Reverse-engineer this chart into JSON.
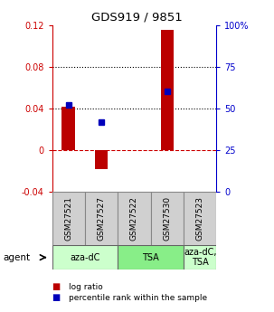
{
  "title": "GDS919 / 9851",
  "samples": [
    "GSM27521",
    "GSM27527",
    "GSM27522",
    "GSM27530",
    "GSM27523"
  ],
  "log_ratios": [
    0.042,
    -0.018,
    0.0,
    0.115,
    0.0
  ],
  "pct_ranks_raw": [
    52,
    42,
    0,
    60,
    0
  ],
  "ylim_left": [
    -0.04,
    0.12
  ],
  "ylim_right": [
    0,
    100
  ],
  "yticks_left": [
    -0.04,
    0.0,
    0.04,
    0.08,
    0.12
  ],
  "ytick_labels_left": [
    "-0.04",
    "0",
    "0.04",
    "0.08",
    "0.12"
  ],
  "yticks_right": [
    0,
    25,
    50,
    75,
    100
  ],
  "ytick_labels_right": [
    "0",
    "25",
    "50",
    "75",
    "100%"
  ],
  "hlines_dotted": [
    0.04,
    0.08
  ],
  "hline_dashed": 0.0,
  "bar_color": "#bb0000",
  "dot_color": "#0000bb",
  "bar_width": 0.4,
  "agent_groups": [
    {
      "label": "aza-dC",
      "span": [
        0,
        2
      ],
      "color": "#ccffcc"
    },
    {
      "label": "TSA",
      "span": [
        2,
        4
      ],
      "color": "#88ee88"
    },
    {
      "label": "aza-dC,\nTSA",
      "span": [
        4,
        5
      ],
      "color": "#ccffcc"
    }
  ],
  "legend_items": [
    {
      "color": "#bb0000",
      "label": "log ratio"
    },
    {
      "color": "#0000bb",
      "label": "percentile rank within the sample"
    }
  ],
  "left_axis_color": "#cc0000",
  "right_axis_color": "#0000cc",
  "sample_box_color": "#d0d0d0",
  "sample_box_edge": "#888888",
  "title_color": "#000000"
}
